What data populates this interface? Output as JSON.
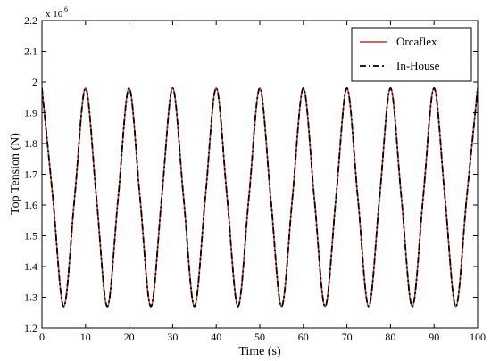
{
  "chart_data": {
    "type": "line",
    "title": "",
    "xlabel": "Time (s)",
    "ylabel": "Top Tension (N)",
    "xlim": [
      0,
      100
    ],
    "ylim": [
      1.2,
      2.2
    ],
    "y_exponent_label": "x 10",
    "y_exponent_value": "6",
    "xticks": [
      "0",
      "10",
      "20",
      "30",
      "40",
      "50",
      "60",
      "70",
      "80",
      "90",
      "100"
    ],
    "yticks": [
      "1.2",
      "1.3",
      "1.4",
      "1.5",
      "1.6",
      "1.7",
      "1.8",
      "1.9",
      "2",
      "2.1",
      "2.2"
    ],
    "grid": false,
    "legend_position": "top-right",
    "series": [
      {
        "name": "Orcaflex",
        "color": "#c0392b",
        "style": "solid",
        "x": [
          0,
          2.5,
          5,
          7.5,
          10,
          12.5,
          15,
          17.5,
          20,
          22.5,
          25,
          27.5,
          30,
          32.5,
          35,
          37.5,
          40,
          42.5,
          45,
          47.5,
          50,
          52.5,
          55,
          57.5,
          60,
          62.5,
          65,
          67.5,
          70,
          72.5,
          75,
          77.5,
          80,
          82.5,
          85,
          87.5,
          90,
          92.5,
          95,
          97.5,
          100
        ],
        "values": [
          1.98,
          1.625,
          1.27,
          1.625,
          1.98,
          1.625,
          1.27,
          1.625,
          1.98,
          1.625,
          1.27,
          1.625,
          1.98,
          1.625,
          1.27,
          1.625,
          1.98,
          1.625,
          1.27,
          1.625,
          1.98,
          1.625,
          1.27,
          1.625,
          1.98,
          1.625,
          1.27,
          1.625,
          1.98,
          1.625,
          1.27,
          1.625,
          1.98,
          1.625,
          1.27,
          1.625,
          1.98,
          1.625,
          1.27,
          1.625,
          1.98
        ]
      },
      {
        "name": "In-House",
        "color": "#000000",
        "style": "dashdot",
        "x": [
          0,
          2.5,
          5,
          7.5,
          10,
          12.5,
          15,
          17.5,
          20,
          22.5,
          25,
          27.5,
          30,
          32.5,
          35,
          37.5,
          40,
          42.5,
          45,
          47.5,
          50,
          52.5,
          55,
          57.5,
          60,
          62.5,
          65,
          67.5,
          70,
          72.5,
          75,
          77.5,
          80,
          82.5,
          85,
          87.5,
          90,
          92.5,
          95,
          97.5,
          100
        ],
        "values": [
          1.98,
          1.625,
          1.27,
          1.625,
          1.98,
          1.625,
          1.27,
          1.625,
          1.98,
          1.625,
          1.27,
          1.625,
          1.98,
          1.625,
          1.27,
          1.625,
          1.98,
          1.625,
          1.27,
          1.625,
          1.98,
          1.625,
          1.27,
          1.625,
          1.98,
          1.625,
          1.27,
          1.625,
          1.98,
          1.625,
          1.27,
          1.625,
          1.98,
          1.625,
          1.27,
          1.625,
          1.98,
          1.625,
          1.27,
          1.625,
          1.98
        ]
      }
    ]
  }
}
